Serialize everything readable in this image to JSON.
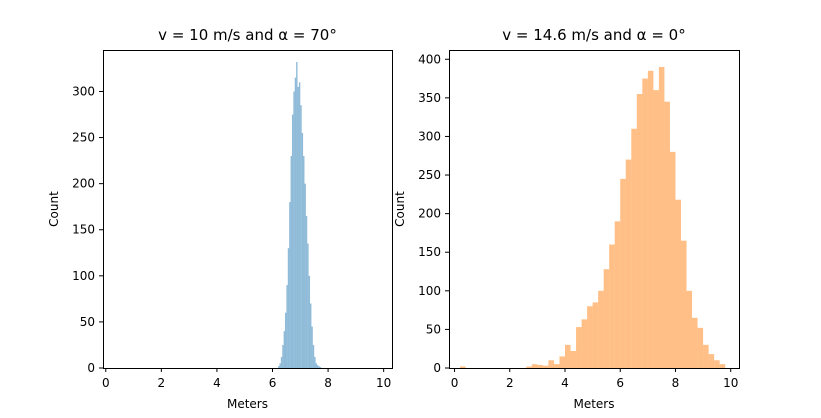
{
  "chart_data": [
    {
      "type": "histogram",
      "title": "v = 10 m/s and α = 70°",
      "xlabel": "Meters",
      "ylabel": "Count",
      "xlim": [
        -0.1,
        10.3
      ],
      "ylim": [
        0,
        345
      ],
      "xticks": [
        0,
        2,
        4,
        6,
        8,
        10
      ],
      "yticks": [
        0,
        50,
        100,
        150,
        200,
        250,
        300
      ],
      "color": "#1f77b4",
      "alpha": 0.5,
      "bin_width": 0.05,
      "bins": {
        "x": [
          6.2,
          6.25,
          6.3,
          6.35,
          6.4,
          6.45,
          6.5,
          6.55,
          6.6,
          6.65,
          6.7,
          6.75,
          6.8,
          6.85,
          6.9,
          6.95,
          7.0,
          7.05,
          7.1,
          7.15,
          7.2,
          7.25,
          7.3,
          7.35,
          7.4,
          7.45,
          7.5,
          7.55,
          7.6,
          7.65,
          7.7
        ],
        "counts": [
          2,
          5,
          12,
          25,
          40,
          60,
          90,
          130,
          180,
          230,
          275,
          300,
          315,
          332,
          305,
          310,
          285,
          255,
          230,
          200,
          165,
          135,
          100,
          70,
          45,
          25,
          12,
          5,
          3,
          2,
          1
        ]
      }
    },
    {
      "type": "histogram",
      "title": "v = 14.6 m/s and α = 0°",
      "xlabel": "Meters",
      "ylabel": "Count",
      "xlim": [
        -0.2,
        10.3
      ],
      "ylim": [
        0,
        412
      ],
      "xticks": [
        0,
        2,
        4,
        6,
        8,
        10
      ],
      "yticks": [
        0,
        50,
        100,
        150,
        200,
        250,
        300,
        350,
        400
      ],
      "color": "#ff7f0e",
      "alpha": 0.5,
      "bin_width": 0.2,
      "bins": {
        "x": [
          0.2,
          2.6,
          2.8,
          3.0,
          3.2,
          3.4,
          3.6,
          3.8,
          4.0,
          4.2,
          4.4,
          4.6,
          4.8,
          5.0,
          5.2,
          5.4,
          5.6,
          5.8,
          6.0,
          6.2,
          6.4,
          6.6,
          6.8,
          7.0,
          7.2,
          7.4,
          7.6,
          7.8,
          8.0,
          8.2,
          8.4,
          8.6,
          8.8,
          9.0,
          9.2,
          9.4,
          9.6
        ],
        "counts": [
          2,
          2,
          5,
          4,
          3,
          10,
          5,
          15,
          30,
          22,
          53,
          63,
          80,
          85,
          100,
          128,
          160,
          190,
          245,
          270,
          310,
          355,
          375,
          385,
          360,
          390,
          345,
          280,
          218,
          165,
          100,
          65,
          52,
          30,
          18,
          10,
          5
        ]
      }
    }
  ]
}
